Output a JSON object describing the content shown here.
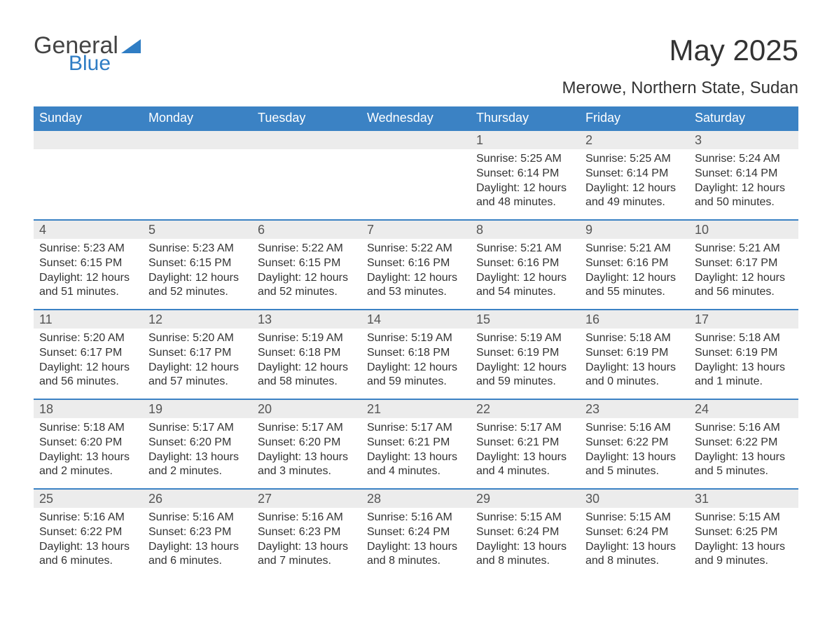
{
  "logo": {
    "word1": "General",
    "word2": "Blue",
    "tri_color": "#2f7dc4"
  },
  "title": "May 2025",
  "location": "Merowe, Northern State, Sudan",
  "colors": {
    "header_bg": "#3b82c4",
    "header_text": "#ffffff",
    "daynum_bg": "#ececec",
    "border_top": "#3b82c4",
    "body_text": "#333333"
  },
  "day_headers": [
    "Sunday",
    "Monday",
    "Tuesday",
    "Wednesday",
    "Thursday",
    "Friday",
    "Saturday"
  ],
  "weeks": [
    [
      null,
      null,
      null,
      null,
      {
        "n": "1",
        "sunrise": "Sunrise: 5:25 AM",
        "sunset": "Sunset: 6:14 PM",
        "daylight": "Daylight: 12 hours and 48 minutes."
      },
      {
        "n": "2",
        "sunrise": "Sunrise: 5:25 AM",
        "sunset": "Sunset: 6:14 PM",
        "daylight": "Daylight: 12 hours and 49 minutes."
      },
      {
        "n": "3",
        "sunrise": "Sunrise: 5:24 AM",
        "sunset": "Sunset: 6:14 PM",
        "daylight": "Daylight: 12 hours and 50 minutes."
      }
    ],
    [
      {
        "n": "4",
        "sunrise": "Sunrise: 5:23 AM",
        "sunset": "Sunset: 6:15 PM",
        "daylight": "Daylight: 12 hours and 51 minutes."
      },
      {
        "n": "5",
        "sunrise": "Sunrise: 5:23 AM",
        "sunset": "Sunset: 6:15 PM",
        "daylight": "Daylight: 12 hours and 52 minutes."
      },
      {
        "n": "6",
        "sunrise": "Sunrise: 5:22 AM",
        "sunset": "Sunset: 6:15 PM",
        "daylight": "Daylight: 12 hours and 52 minutes."
      },
      {
        "n": "7",
        "sunrise": "Sunrise: 5:22 AM",
        "sunset": "Sunset: 6:16 PM",
        "daylight": "Daylight: 12 hours and 53 minutes."
      },
      {
        "n": "8",
        "sunrise": "Sunrise: 5:21 AM",
        "sunset": "Sunset: 6:16 PM",
        "daylight": "Daylight: 12 hours and 54 minutes."
      },
      {
        "n": "9",
        "sunrise": "Sunrise: 5:21 AM",
        "sunset": "Sunset: 6:16 PM",
        "daylight": "Daylight: 12 hours and 55 minutes."
      },
      {
        "n": "10",
        "sunrise": "Sunrise: 5:21 AM",
        "sunset": "Sunset: 6:17 PM",
        "daylight": "Daylight: 12 hours and 56 minutes."
      }
    ],
    [
      {
        "n": "11",
        "sunrise": "Sunrise: 5:20 AM",
        "sunset": "Sunset: 6:17 PM",
        "daylight": "Daylight: 12 hours and 56 minutes."
      },
      {
        "n": "12",
        "sunrise": "Sunrise: 5:20 AM",
        "sunset": "Sunset: 6:17 PM",
        "daylight": "Daylight: 12 hours and 57 minutes."
      },
      {
        "n": "13",
        "sunrise": "Sunrise: 5:19 AM",
        "sunset": "Sunset: 6:18 PM",
        "daylight": "Daylight: 12 hours and 58 minutes."
      },
      {
        "n": "14",
        "sunrise": "Sunrise: 5:19 AM",
        "sunset": "Sunset: 6:18 PM",
        "daylight": "Daylight: 12 hours and 59 minutes."
      },
      {
        "n": "15",
        "sunrise": "Sunrise: 5:19 AM",
        "sunset": "Sunset: 6:19 PM",
        "daylight": "Daylight: 12 hours and 59 minutes."
      },
      {
        "n": "16",
        "sunrise": "Sunrise: 5:18 AM",
        "sunset": "Sunset: 6:19 PM",
        "daylight": "Daylight: 13 hours and 0 minutes."
      },
      {
        "n": "17",
        "sunrise": "Sunrise: 5:18 AM",
        "sunset": "Sunset: 6:19 PM",
        "daylight": "Daylight: 13 hours and 1 minute."
      }
    ],
    [
      {
        "n": "18",
        "sunrise": "Sunrise: 5:18 AM",
        "sunset": "Sunset: 6:20 PM",
        "daylight": "Daylight: 13 hours and 2 minutes."
      },
      {
        "n": "19",
        "sunrise": "Sunrise: 5:17 AM",
        "sunset": "Sunset: 6:20 PM",
        "daylight": "Daylight: 13 hours and 2 minutes."
      },
      {
        "n": "20",
        "sunrise": "Sunrise: 5:17 AM",
        "sunset": "Sunset: 6:20 PM",
        "daylight": "Daylight: 13 hours and 3 minutes."
      },
      {
        "n": "21",
        "sunrise": "Sunrise: 5:17 AM",
        "sunset": "Sunset: 6:21 PM",
        "daylight": "Daylight: 13 hours and 4 minutes."
      },
      {
        "n": "22",
        "sunrise": "Sunrise: 5:17 AM",
        "sunset": "Sunset: 6:21 PM",
        "daylight": "Daylight: 13 hours and 4 minutes."
      },
      {
        "n": "23",
        "sunrise": "Sunrise: 5:16 AM",
        "sunset": "Sunset: 6:22 PM",
        "daylight": "Daylight: 13 hours and 5 minutes."
      },
      {
        "n": "24",
        "sunrise": "Sunrise: 5:16 AM",
        "sunset": "Sunset: 6:22 PM",
        "daylight": "Daylight: 13 hours and 5 minutes."
      }
    ],
    [
      {
        "n": "25",
        "sunrise": "Sunrise: 5:16 AM",
        "sunset": "Sunset: 6:22 PM",
        "daylight": "Daylight: 13 hours and 6 minutes."
      },
      {
        "n": "26",
        "sunrise": "Sunrise: 5:16 AM",
        "sunset": "Sunset: 6:23 PM",
        "daylight": "Daylight: 13 hours and 6 minutes."
      },
      {
        "n": "27",
        "sunrise": "Sunrise: 5:16 AM",
        "sunset": "Sunset: 6:23 PM",
        "daylight": "Daylight: 13 hours and 7 minutes."
      },
      {
        "n": "28",
        "sunrise": "Sunrise: 5:16 AM",
        "sunset": "Sunset: 6:24 PM",
        "daylight": "Daylight: 13 hours and 8 minutes."
      },
      {
        "n": "29",
        "sunrise": "Sunrise: 5:15 AM",
        "sunset": "Sunset: 6:24 PM",
        "daylight": "Daylight: 13 hours and 8 minutes."
      },
      {
        "n": "30",
        "sunrise": "Sunrise: 5:15 AM",
        "sunset": "Sunset: 6:24 PM",
        "daylight": "Daylight: 13 hours and 8 minutes."
      },
      {
        "n": "31",
        "sunrise": "Sunrise: 5:15 AM",
        "sunset": "Sunset: 6:25 PM",
        "daylight": "Daylight: 13 hours and 9 minutes."
      }
    ]
  ]
}
